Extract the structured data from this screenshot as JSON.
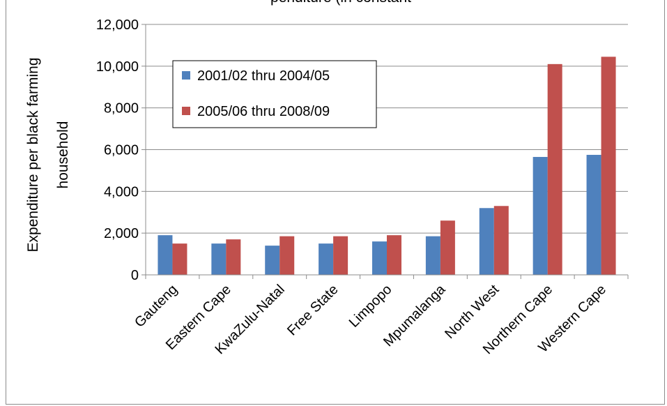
{
  "chart_data": {
    "type": "bar",
    "title": "",
    "title_partial": "penditure (in constant ",
    "ylabel_lines": [
      "Expenditure  per black farming",
      "household"
    ],
    "xlabel": "",
    "ylim": [
      0,
      12000
    ],
    "yticks": [
      0,
      2000,
      4000,
      6000,
      8000,
      10000,
      12000
    ],
    "ytick_labels": [
      "0",
      "2,000",
      "4,000",
      "6,000",
      "8,000",
      "10,000",
      "12,000"
    ],
    "categories": [
      "Gauteng",
      "Eastern Cape",
      "KwaZulu-Natal",
      "Free State",
      "Limpopo",
      "Mpumalanga",
      "North West",
      "Northern Cape",
      "Western Cape"
    ],
    "series": [
      {
        "name": "2001/02 thru 2004/05",
        "color": "#4f81bd",
        "values": [
          1900,
          1500,
          1400,
          1500,
          1600,
          1850,
          3200,
          5650,
          5750
        ]
      },
      {
        "name": "2005/06 thru 2008/09",
        "color": "#c0504d",
        "values": [
          1500,
          1700,
          1850,
          1850,
          1900,
          2600,
          3300,
          10100,
          10450
        ]
      }
    ],
    "grid": true,
    "legend_position": "top-left"
  }
}
